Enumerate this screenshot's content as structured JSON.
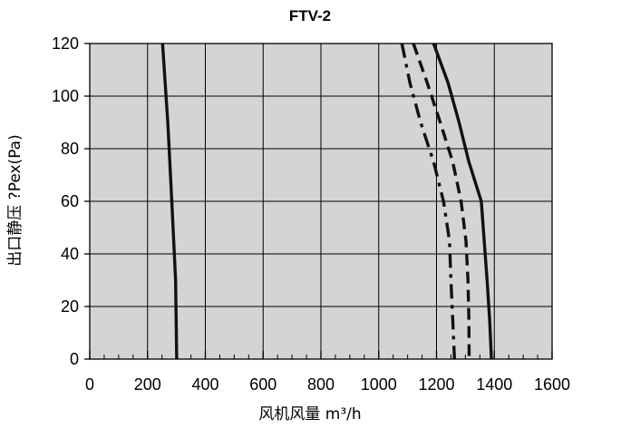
{
  "chart_data": {
    "type": "line",
    "title": "FTV-2",
    "xlabel": "风机风量  m³/h",
    "ylabel": "出口静压  ?Pex(Pa)",
    "xlim": [
      0,
      1600
    ],
    "ylim": [
      0,
      120
    ],
    "x_ticks": [
      "0",
      "200",
      "400",
      "600",
      "800",
      "1000",
      "1200",
      "1400",
      "1600"
    ],
    "y_ticks": [
      "0",
      "20",
      "40",
      "60",
      "80",
      "100",
      "120"
    ],
    "grid": true,
    "plot_background": "#d4d4d4",
    "series": [
      {
        "line_style": "solid",
        "color": "#111111",
        "points": [
          [
            252,
            120
          ],
          [
            270,
            90
          ],
          [
            284,
            60
          ],
          [
            297,
            30
          ],
          [
            301,
            0
          ]
        ]
      },
      {
        "line_style": "dashdot",
        "color": "#111111",
        "points": [
          [
            1080,
            120
          ],
          [
            1108,
            105
          ],
          [
            1145,
            90
          ],
          [
            1190,
            75
          ],
          [
            1224,
            60
          ],
          [
            1245,
            45
          ],
          [
            1250,
            30
          ],
          [
            1256,
            15
          ],
          [
            1262,
            0
          ]
        ]
      },
      {
        "line_style": "dashed",
        "color": "#111111",
        "points": [
          [
            1120,
            120
          ],
          [
            1168,
            105
          ],
          [
            1213,
            90
          ],
          [
            1256,
            75
          ],
          [
            1285,
            60
          ],
          [
            1302,
            45
          ],
          [
            1309,
            30
          ],
          [
            1312,
            15
          ],
          [
            1313,
            0
          ]
        ]
      },
      {
        "line_style": "solid",
        "color": "#111111",
        "points": [
          [
            1190,
            120
          ],
          [
            1240,
            105
          ],
          [
            1278,
            90
          ],
          [
            1312,
            75
          ],
          [
            1355,
            60
          ],
          [
            1365,
            45
          ],
          [
            1375,
            30
          ],
          [
            1384,
            15
          ],
          [
            1390,
            0
          ]
        ]
      }
    ]
  }
}
